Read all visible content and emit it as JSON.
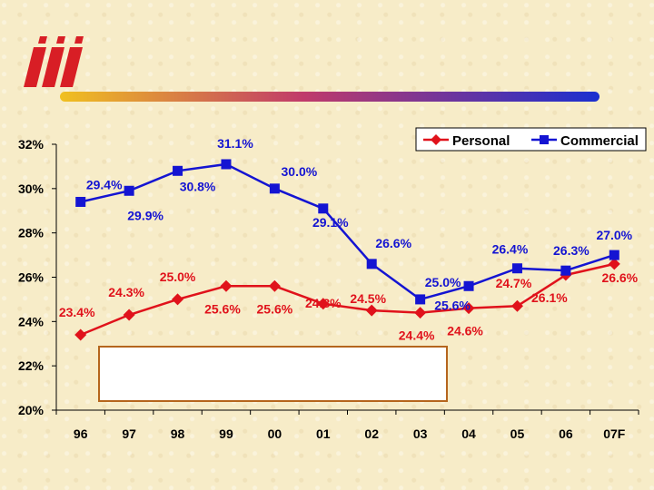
{
  "colors": {
    "personal": "#e0121b",
    "commercial": "#1414d2",
    "logo": "#d81e25",
    "bar": "#1a2fd0"
  },
  "chart_data": {
    "type": "line",
    "categories": [
      "96",
      "97",
      "98",
      "99",
      "00",
      "01",
      "02",
      "03",
      "04",
      "05",
      "06",
      "07F"
    ],
    "ylim": [
      20,
      32
    ],
    "yticks": [
      "20%",
      "22%",
      "24%",
      "26%",
      "28%",
      "30%",
      "32%"
    ],
    "legend_position": "top-right",
    "grid": false,
    "series": [
      {
        "name": "Personal",
        "color": "#e0121b",
        "marker": "diamond",
        "values": [
          23.4,
          24.3,
          25.0,
          25.6,
          25.6,
          24.8,
          24.5,
          24.4,
          24.6,
          24.7,
          26.1,
          26.6
        ],
        "labels": [
          "23.4%",
          "24.3%",
          "25.0%",
          "25.6%",
          "25.6%",
          "24.8%",
          "24.5%",
          "24.4%",
          "24.6%",
          "24.7%",
          "26.1%",
          "26.6%"
        ]
      },
      {
        "name": "Commercial",
        "color": "#1414d2",
        "marker": "square",
        "values": [
          29.4,
          29.9,
          30.8,
          31.1,
          30.0,
          29.1,
          26.6,
          25.0,
          25.6,
          26.4,
          26.3,
          27.0
        ],
        "labels": [
          "29.4%",
          "29.9%",
          "30.8%",
          "31.1%",
          "30.0%",
          "29.1%",
          "26.6%",
          "25.0%",
          "25.6%",
          "26.4%",
          "26.3%",
          "27.0%"
        ]
      }
    ]
  }
}
